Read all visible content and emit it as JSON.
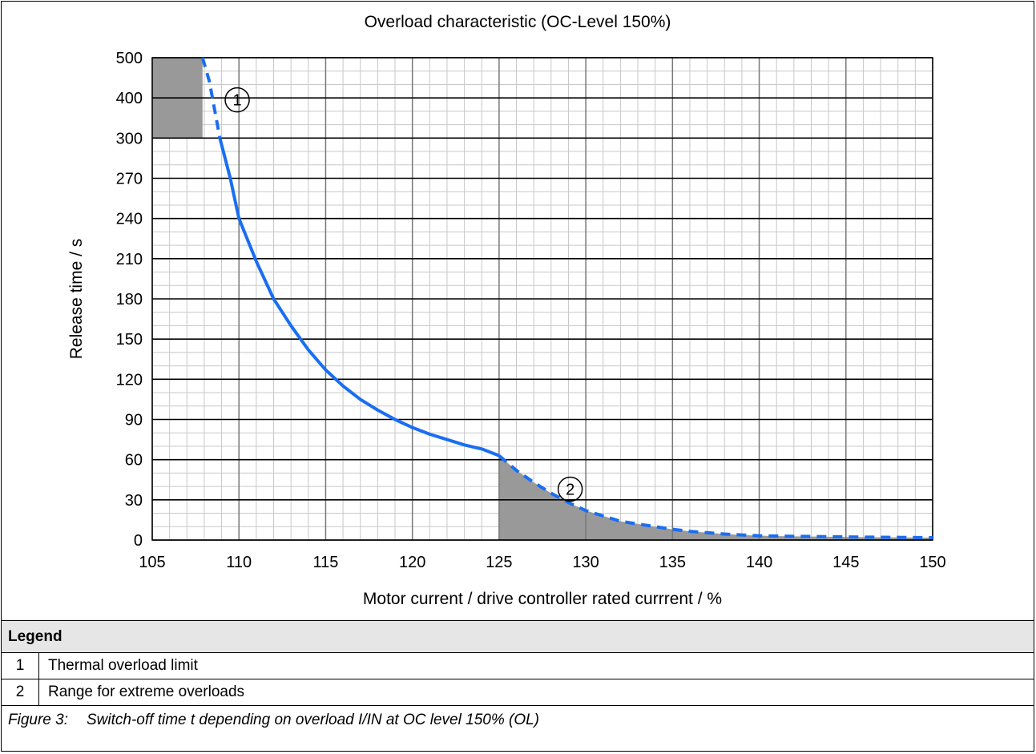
{
  "chart_data": {
    "type": "line",
    "title": "Overload characteristic (OC-Level 150%)",
    "xlabel": "Motor current / drive controller rated currrent / %",
    "ylabel": "Release time / s",
    "xlim": [
      105,
      150
    ],
    "x_ticks": [
      "105",
      "110",
      "115",
      "120",
      "125",
      "130",
      "135",
      "140",
      "145",
      "150"
    ],
    "y_ticks": [
      "0",
      "30",
      "60",
      "90",
      "120",
      "150",
      "180",
      "210",
      "240",
      "270",
      "300",
      "400",
      "500"
    ],
    "y_scale": "piecewise: 0-300 linear (30 per gridline), 300-500 (100 per gridline)",
    "grid": true,
    "series": [
      {
        "x": [
          107.9,
          108.3,
          108.6,
          108.9,
          109.2,
          109.5,
          110,
          111,
          112,
          113,
          114,
          115,
          116,
          117,
          118,
          119,
          120,
          121,
          122,
          123,
          124,
          125,
          126,
          127,
          128,
          129,
          130,
          131,
          132,
          133,
          134,
          135,
          136,
          137,
          138,
          139,
          140,
          142,
          144,
          146,
          148,
          150
        ],
        "y": [
          500,
          440,
          370,
          300,
          285,
          270,
          240,
          208,
          180,
          160,
          142,
          127,
          115,
          105,
          97,
          90,
          84,
          79,
          75,
          71,
          68,
          63,
          52,
          43,
          35,
          28,
          22,
          18,
          14,
          12,
          10,
          8,
          6.5,
          5.5,
          4.5,
          3.8,
          3.2,
          2.8,
          2.5,
          2.2,
          2,
          1.8
        ],
        "line_color": "#1a6ef0",
        "dashed_ranges": [
          [
            107.9,
            108.9
          ],
          [
            125,
            150
          ]
        ]
      }
    ],
    "shaded_regions": [
      {
        "x": [
          105,
          107.9
        ],
        "y_range": [
          300,
          500
        ],
        "color": "#999999"
      },
      {
        "x": [
          125,
          150
        ],
        "below_curve": true,
        "color": "#999999"
      }
    ],
    "annotations": [
      {
        "label": "1",
        "x": 109.9,
        "y": 395
      },
      {
        "label": "2",
        "x": 129.1,
        "y": 38
      }
    ]
  },
  "legend": {
    "header": "Legend",
    "items": [
      {
        "number": "1",
        "text": "Thermal overload limit"
      },
      {
        "number": "2",
        "text": "Range for extreme overloads"
      }
    ]
  },
  "caption": {
    "figure": "Figure 3:",
    "text": "Switch-off time t depending on overload I/IN at OC level 150% (OL)"
  }
}
